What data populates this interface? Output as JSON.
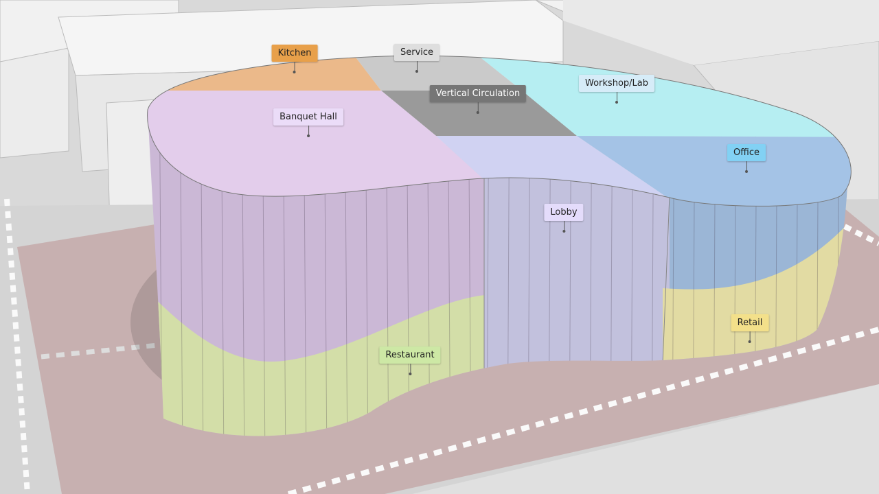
{
  "zones": [
    {
      "label": "Kitchen"
    },
    {
      "label": "Service"
    },
    {
      "label": "Vertical Circulation"
    },
    {
      "label": "Workshop/Lab"
    },
    {
      "label": "Banquet Hall"
    },
    {
      "label": "Office"
    },
    {
      "label": "Lobby"
    },
    {
      "label": "Retail"
    },
    {
      "label": "Restaurant"
    }
  ]
}
